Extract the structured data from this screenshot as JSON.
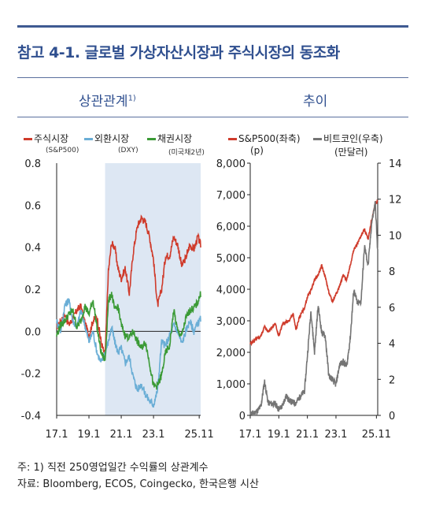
{
  "title": "참고 4-1. 글로벌 가상자산시장과 주식시장의 동조화",
  "left_heading": "상관관계",
  "left_heading_sup": "1)",
  "right_heading": "추이",
  "colors": {
    "red": "#cf3b2b",
    "blue": "#6aaed6",
    "green": "#3a9a35",
    "gray": "#747474",
    "shade": "#dde7f3",
    "accent": "#2f4f8f"
  },
  "notes": [
    "주: 1) 직전 250영업일간 수익률의 상관계수",
    "자료: Bloomberg, ECOS, Coingecko, 한국은행 시산"
  ],
  "chart_data": [
    {
      "type": "line",
      "x_ticks": [
        "17.1",
        "19.1",
        "21.1",
        "23.1",
        "25.11"
      ],
      "ylim": [
        -0.4,
        0.8
      ],
      "y_ticks": [
        "0.8",
        "0.6",
        "0.4",
        "0.2",
        "0.0",
        "-0.2",
        "-0.4"
      ],
      "shaded_period": [
        "20.1",
        "25.11"
      ],
      "x": [
        2017.0,
        2017.25,
        2017.5,
        2017.75,
        2018.0,
        2018.25,
        2018.5,
        2018.75,
        2019.0,
        2019.25,
        2019.5,
        2019.75,
        2020.0,
        2020.2,
        2020.4,
        2020.6,
        2020.8,
        2021.0,
        2021.25,
        2021.5,
        2021.75,
        2022.0,
        2022.25,
        2022.5,
        2022.75,
        2023.0,
        2023.25,
        2023.5,
        2023.75,
        2024.0,
        2024.25,
        2024.5,
        2024.75,
        2025.0,
        2025.25,
        2025.5,
        2025.75,
        2025.92
      ],
      "series": [
        {
          "name": "주식시장",
          "sub": "(S&P500)",
          "color": "#cf3b2b",
          "values": [
            0.02,
            0.05,
            0.08,
            0.03,
            0.06,
            0.1,
            0.12,
            0.04,
            -0.02,
            0.05,
            0.07,
            -0.05,
            -0.12,
            0.28,
            0.42,
            0.4,
            0.3,
            0.25,
            0.3,
            0.18,
            0.38,
            0.5,
            0.54,
            0.52,
            0.45,
            0.34,
            0.12,
            0.2,
            0.36,
            0.36,
            0.45,
            0.41,
            0.31,
            0.35,
            0.41,
            0.39,
            0.45,
            0.41
          ]
        },
        {
          "name": "외환시장",
          "sub": "(DXY)",
          "color": "#6aaed6",
          "values": [
            0.05,
            0.0,
            0.12,
            0.15,
            0.05,
            0.02,
            0.1,
            0.03,
            -0.05,
            0.0,
            -0.1,
            -0.15,
            -0.1,
            -0.05,
            0.02,
            -0.05,
            -0.1,
            -0.08,
            -0.15,
            -0.12,
            -0.22,
            -0.28,
            -0.25,
            -0.3,
            -0.33,
            -0.35,
            -0.28,
            -0.05,
            -0.07,
            -0.02,
            0.03,
            0.0,
            -0.06,
            0.0,
            0.05,
            0.0,
            0.04,
            0.06
          ]
        },
        {
          "name": "채권시장",
          "sub": "(미국채2년)",
          "color": "#3a9a35",
          "values": [
            -0.02,
            0.03,
            0.05,
            0.08,
            0.1,
            0.02,
            0.05,
            0.12,
            0.08,
            0.15,
            0.02,
            -0.1,
            -0.14,
            0.14,
            0.18,
            0.1,
            0.12,
            0.03,
            -0.02,
            -0.03,
            0.0,
            -0.05,
            -0.08,
            -0.05,
            -0.15,
            -0.26,
            -0.26,
            -0.21,
            -0.1,
            -0.07,
            0.1,
            0.0,
            -0.02,
            0.06,
            0.1,
            0.11,
            0.14,
            0.18
          ]
        }
      ]
    },
    {
      "type": "line",
      "x_ticks": [
        "17.1",
        "19.1",
        "21.1",
        "23.1",
        "25.11"
      ],
      "left_axis": {
        "label": "(p)",
        "ylim": [
          0,
          8000
        ],
        "ticks": [
          "8,000",
          "7,000",
          "6,000",
          "5,000",
          "4,000",
          "3,000",
          "2,000",
          "1,000",
          "0"
        ]
      },
      "right_axis": {
        "label": "(만달러)",
        "ylim": [
          0,
          14
        ],
        "ticks": [
          "14",
          "12",
          "10",
          "8",
          "6",
          "4",
          "2",
          "0"
        ]
      },
      "x": [
        2017.0,
        2017.25,
        2017.5,
        2017.75,
        2018.0,
        2018.25,
        2018.5,
        2018.75,
        2019.0,
        2019.25,
        2019.5,
        2019.75,
        2020.0,
        2020.2,
        2020.4,
        2020.6,
        2020.8,
        2021.0,
        2021.25,
        2021.5,
        2021.75,
        2022.0,
        2022.25,
        2022.5,
        2022.75,
        2023.0,
        2023.25,
        2023.5,
        2023.75,
        2024.0,
        2024.25,
        2024.5,
        2024.75,
        2025.0,
        2025.25,
        2025.5,
        2025.75,
        2025.92
      ],
      "series": [
        {
          "name": "S&P500(좌축)",
          "axis": "left",
          "color": "#cf3b2b",
          "values": [
            2270,
            2360,
            2430,
            2520,
            2820,
            2650,
            2780,
            2910,
            2510,
            2880,
            2950,
            3000,
            3230,
            2700,
            3050,
            3270,
            3400,
            3750,
            3970,
            4300,
            4450,
            4750,
            4400,
            3900,
            3600,
            3850,
            4100,
            4450,
            4300,
            4770,
            5250,
            5450,
            5700,
            5900,
            5600,
            6200,
            6700,
            6800
          ]
        },
        {
          "name": "비트코인(우축)",
          "axis": "right",
          "color": "#747474",
          "values": [
            0.1,
            0.12,
            0.25,
            0.5,
            1.9,
            0.7,
            0.65,
            0.64,
            0.35,
            0.5,
            1.1,
            0.8,
            0.72,
            0.68,
            0.95,
            1.15,
            1.35,
            3.3,
            5.8,
            3.5,
            6.1,
            4.6,
            4.4,
            2.2,
            2.0,
            1.7,
            2.8,
            3.0,
            2.7,
            4.3,
            7.0,
            6.2,
            6.3,
            9.4,
            8.3,
            10.7,
            11.8,
            9.0
          ]
        }
      ]
    }
  ]
}
